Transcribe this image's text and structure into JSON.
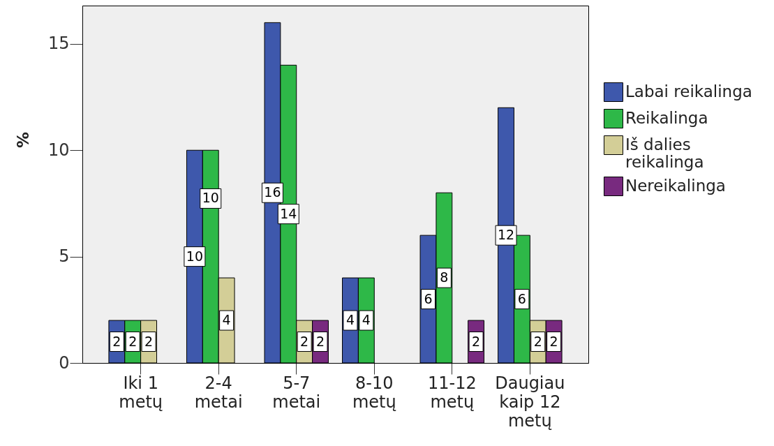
{
  "chart_data": {
    "type": "bar",
    "ylabel": "%",
    "categories": [
      "Iki 1 metų",
      "2-4 metai",
      "5-7 metai",
      "8-10 metų",
      "11-12 metų",
      "Daugiau kaip 12 metų"
    ],
    "series": [
      {
        "name": "Labai reikalinga",
        "color": "#3e58ac",
        "values": [
          2,
          10,
          16,
          4,
          6,
          12
        ]
      },
      {
        "name": "Reikalinga",
        "color": "#2eb848",
        "values": [
          2,
          10,
          14,
          4,
          8,
          6
        ]
      },
      {
        "name": "Iš dalies reikalinga",
        "color": "#d3ce97",
        "values": [
          2,
          4,
          2,
          null,
          null,
          2
        ]
      },
      {
        "name": "Nereikalinga",
        "color": "#782a7f",
        "values": [
          null,
          null,
          2,
          null,
          2,
          2
        ]
      }
    ],
    "ylim": [
      0,
      16.8
    ],
    "yticks": [
      0,
      5,
      10,
      15
    ],
    "data_labels": true,
    "legend": "right",
    "grid": false
  }
}
